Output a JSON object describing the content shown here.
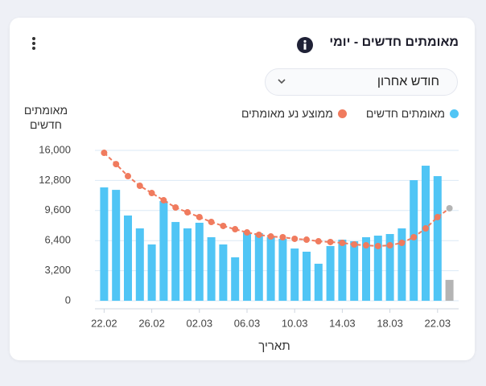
{
  "chart_data": {
    "type": "bar",
    "title": "מאומתים חדשים - יומי",
    "filter": "חודש אחרון",
    "y_label": "מאומתים חדשים",
    "x_label": "תאריך",
    "categories": [
      "22.02",
      null,
      null,
      null,
      "26.02",
      null,
      null,
      null,
      "02.03",
      null,
      null,
      null,
      "06.03",
      null,
      null,
      null,
      "10.03",
      null,
      null,
      null,
      "14.03",
      null,
      null,
      null,
      "18.03",
      null,
      null,
      null,
      "22.03",
      null
    ],
    "series": [
      {
        "name": "מאומתים חדשים",
        "type": "bar",
        "color": "#50c5f5",
        "last_color": "#b4b4b4",
        "values": [
          12060,
          11800,
          9070,
          7700,
          5990,
          10610,
          8380,
          7700,
          8300,
          6760,
          5990,
          4620,
          7270,
          7190,
          6760,
          6590,
          5560,
          5220,
          3940,
          5820,
          6500,
          6330,
          6760,
          6930,
          7100,
          7700,
          12830,
          14370,
          13260,
          2220
        ]
      },
      {
        "name": "ממוצע נע מאומתים",
        "type": "line",
        "color": "#f07b5e",
        "last_color": "#b4b4b4",
        "values": [
          15740,
          14540,
          13260,
          12230,
          11460,
          10690,
          9920,
          9410,
          8900,
          8380,
          7960,
          7610,
          7270,
          7020,
          6840,
          6760,
          6590,
          6500,
          6330,
          6250,
          6160,
          5990,
          5900,
          5820,
          5900,
          6160,
          6760,
          7700,
          8900,
          9840
        ]
      }
    ],
    "ylim": [
      0,
      16000
    ],
    "yticks": [
      0,
      {
        "value": 3200,
        "label": "3,200"
      },
      {
        "value": 6400,
        "label": "6,400"
      },
      {
        "value": 9600,
        "label": "9,600"
      },
      {
        "value": 12800,
        "label": "12,800"
      },
      {
        "value": 16000,
        "label": "16,000"
      }
    ],
    "grid": true
  }
}
